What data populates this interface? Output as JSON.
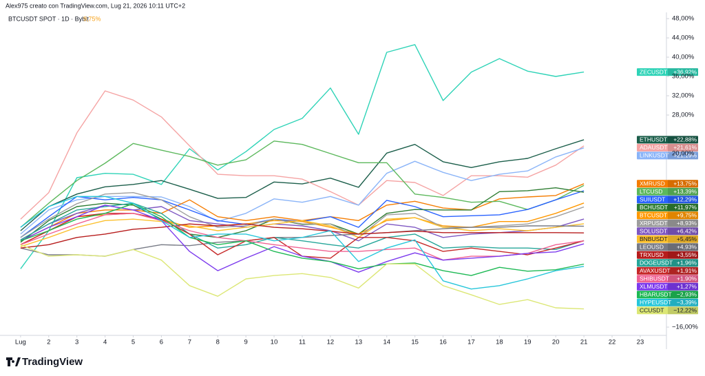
{
  "header": {
    "credit": "Alex975 creato con TradingView.com, Lug 21, 2026 10:11 UTC+2",
    "symbol": "BTCUSDT SPOT · 1D · Bybit",
    "symbol_change": "9,75%",
    "brand": "TradingView"
  },
  "chart_data": {
    "type": "line",
    "x": [
      1,
      2,
      3,
      4,
      5,
      6,
      7,
      8,
      9,
      10,
      11,
      12,
      13,
      14,
      15,
      16,
      17,
      18,
      19,
      20,
      21
    ],
    "xlim": [
      0.27,
      23.93
    ],
    "xticks": [
      {
        "value": 1,
        "label": "Lug"
      },
      2,
      3,
      4,
      5,
      6,
      7,
      8,
      9,
      10,
      11,
      12,
      13,
      14,
      15,
      16,
      17,
      18,
      19,
      20,
      21,
      22,
      23
    ],
    "ylim": [
      -17.71,
      49.29
    ],
    "yticks": [
      {
        "value": 48,
        "label": "48,00%"
      },
      {
        "value": 44,
        "label": "44,00%"
      },
      {
        "value": 40,
        "label": "40,00%"
      },
      {
        "value": 36,
        "label": "36,00%"
      },
      {
        "value": 32,
        "label": "32,00%"
      },
      {
        "value": 28,
        "label": "28,00%"
      },
      {
        "value": 20,
        "label": "20,00%"
      },
      {
        "value": -16,
        "label": "−16,00%"
      }
    ],
    "grid": false,
    "series": [
      {
        "name": "ZECUSDT",
        "color": "#2ed3b7",
        "values": [
          -3.9,
          4,
          15,
          15.9,
          15.7,
          13.6,
          21,
          16.6,
          20.4,
          25,
          27.3,
          33.6,
          24,
          41,
          42.6,
          31,
          36.9,
          39.7,
          37.1,
          36,
          36.92
        ],
        "value_labels": [
          null,
          null,
          null,
          null,
          null,
          null,
          null,
          null,
          null,
          null,
          null,
          null,
          null,
          null,
          null,
          null,
          null,
          null,
          null,
          null,
          "+36,92%"
        ]
      },
      {
        "name": "ETHUSDT",
        "color": "#1b5e4a",
        "values": [
          4,
          9,
          11.6,
          13.1,
          13.6,
          14.4,
          12.6,
          10.7,
          10.9,
          14.1,
          13.7,
          14.9,
          13,
          20.1,
          21.9,
          18.3,
          17.1,
          18.3,
          19,
          21,
          22.88
        ],
        "value_labels": [
          null,
          null,
          null,
          null,
          null,
          null,
          null,
          null,
          null,
          null,
          null,
          null,
          null,
          null,
          null,
          null,
          null,
          null,
          null,
          null,
          "+22,88%"
        ]
      },
      {
        "name": "ADAUSDT",
        "color": "#f5a3a3",
        "values": [
          6.4,
          11.9,
          24.3,
          33,
          31.1,
          27.6,
          21.6,
          15.7,
          15.4,
          15.4,
          14.7,
          12.1,
          9.3,
          14.4,
          14,
          11.3,
          15.4,
          15.4,
          15.1,
          17.6,
          21.61
        ],
        "value_labels": [
          null,
          null,
          null,
          null,
          null,
          null,
          null,
          null,
          null,
          null,
          null,
          null,
          null,
          null,
          null,
          null,
          null,
          null,
          null,
          null,
          "+21,61%"
        ]
      },
      {
        "name": "LINKUSDT",
        "color": "#8ab4f8",
        "values": [
          3.3,
          8.3,
          10.4,
          11.1,
          11.1,
          11,
          9,
          5.9,
          7.6,
          10.6,
          9.9,
          11.1,
          9.3,
          15.9,
          18.4,
          16.1,
          14.4,
          15.7,
          16.4,
          19.3,
          21.19
        ],
        "value_labels": [
          null,
          null,
          null,
          null,
          null,
          null,
          null,
          null,
          null,
          null,
          null,
          null,
          null,
          null,
          null,
          null,
          null,
          null,
          null,
          null,
          "+21,19%"
        ]
      },
      {
        "name": "XMRUSD",
        "color": "#f57c00",
        "values": [
          1.9,
          4.7,
          7.6,
          8.3,
          8.3,
          7.6,
          10.4,
          6.9,
          6.1,
          6.9,
          6.1,
          6.9,
          6.1,
          9.3,
          10.1,
          8.7,
          8.3,
          10.6,
          11,
          11.3,
          13.75
        ],
        "value_labels": [
          null,
          null,
          null,
          null,
          null,
          null,
          null,
          null,
          null,
          null,
          null,
          null,
          null,
          null,
          null,
          null,
          null,
          null,
          null,
          null,
          "+13,75%"
        ]
      },
      {
        "name": "LTCUSD",
        "color": "#5cb85c",
        "values": [
          4.7,
          9.7,
          14.4,
          18,
          22.1,
          20.7,
          19.4,
          17.6,
          18.7,
          22.6,
          21.9,
          20,
          18.1,
          18.1,
          11.6,
          10.9,
          9.9,
          10.1,
          8.4,
          10.4,
          13.39
        ],
        "value_labels": [
          null,
          null,
          null,
          null,
          null,
          null,
          null,
          null,
          null,
          null,
          null,
          null,
          null,
          null,
          null,
          null,
          null,
          null,
          null,
          null,
          "+13,39%"
        ]
      },
      {
        "name": "SUIUSDT",
        "color": "#2962ff",
        "values": [
          2.6,
          6.9,
          11.1,
          10.4,
          10.9,
          10.4,
          8.3,
          6.1,
          5.3,
          6.4,
          5.9,
          6.9,
          4.7,
          10.3,
          9,
          6.9,
          7.1,
          7.3,
          8.4,
          10.4,
          12.29
        ],
        "value_labels": [
          null,
          null,
          null,
          null,
          null,
          null,
          null,
          null,
          null,
          null,
          null,
          null,
          null,
          null,
          null,
          null,
          null,
          null,
          null,
          null,
          "+12,29%"
        ]
      },
      {
        "name": "BCHUSDT",
        "color": "#2e7d32",
        "values": [
          1.6,
          6.1,
          9,
          9.7,
          9.3,
          6.4,
          3.3,
          2.6,
          4,
          6.4,
          5.3,
          5.4,
          3.3,
          7.6,
          8.4,
          8.3,
          8.3,
          12.1,
          12.3,
          12.9,
          11.97
        ],
        "value_labels": [
          null,
          null,
          null,
          null,
          null,
          null,
          null,
          null,
          null,
          null,
          null,
          null,
          null,
          null,
          null,
          null,
          null,
          null,
          null,
          null,
          "+11,97%"
        ]
      },
      {
        "name": "BTCUSDT",
        "color": "#ff9800",
        "values": [
          1.1,
          4,
          6.9,
          7.3,
          7.6,
          6.4,
          4.7,
          5,
          5.4,
          6.1,
          5.9,
          4.7,
          3.3,
          6.1,
          6.7,
          5,
          4.7,
          5.9,
          5.9,
          7.6,
          9.75
        ],
        "value_labels": [
          null,
          null,
          null,
          null,
          null,
          null,
          null,
          null,
          null,
          null,
          null,
          null,
          null,
          null,
          null,
          null,
          null,
          null,
          null,
          null,
          "+9,75%"
        ]
      },
      {
        "name": "XRPUSDT",
        "color": "#9e9e9e",
        "values": [
          2.6,
          6.4,
          9.6,
          11.6,
          11.9,
          10.4,
          6.9,
          4.7,
          5,
          6.4,
          5.4,
          5.4,
          2.6,
          7.3,
          7.6,
          4.7,
          4.7,
          5,
          5.4,
          6.9,
          8.93
        ],
        "value_labels": [
          null,
          null,
          null,
          null,
          null,
          null,
          null,
          null,
          null,
          null,
          null,
          null,
          null,
          null,
          null,
          null,
          null,
          null,
          null,
          null,
          "+8,93%"
        ]
      },
      {
        "name": "SOLUSDT",
        "color": "#7e57c2",
        "values": [
          2.1,
          5.4,
          7.6,
          9.3,
          8.3,
          9,
          6.1,
          5.4,
          4.7,
          5.4,
          5,
          4,
          1.9,
          5.4,
          4.7,
          2.6,
          3.3,
          3.6,
          4,
          4.7,
          6.42
        ],
        "value_labels": [
          null,
          null,
          null,
          null,
          null,
          null,
          null,
          null,
          null,
          null,
          null,
          null,
          null,
          null,
          null,
          null,
          null,
          null,
          null,
          null,
          "+6,42%"
        ]
      },
      {
        "name": "BNBUSDT",
        "color": "#fbc02d",
        "values": [
          0.7,
          2.6,
          4.7,
          6.1,
          6.4,
          5.9,
          5,
          4,
          4.7,
          5.4,
          6.1,
          5,
          2.6,
          6.4,
          6.7,
          4.7,
          4,
          4.4,
          4,
          4.7,
          5.45
        ],
        "value_labels": [
          null,
          null,
          null,
          null,
          null,
          null,
          null,
          null,
          null,
          null,
          null,
          null,
          null,
          null,
          null,
          null,
          null,
          null,
          null,
          null,
          "+5,45%"
        ]
      },
      {
        "name": "LEOUSD",
        "color": "#787b86",
        "values": [
          0.4,
          -1,
          -1,
          -1.3,
          0.1,
          1.1,
          0.9,
          1.6,
          1.9,
          2.6,
          2.6,
          3,
          3.3,
          3.6,
          4,
          4.4,
          4.7,
          4.7,
          5,
          5,
          4.93
        ],
        "value_labels": [
          null,
          null,
          null,
          null,
          null,
          null,
          null,
          null,
          null,
          null,
          null,
          null,
          null,
          null,
          null,
          null,
          null,
          null,
          null,
          null,
          "+4,93%"
        ]
      },
      {
        "name": "TRXUSD",
        "color": "#b71c1c",
        "values": [
          0.4,
          1.1,
          2.6,
          3.3,
          4.3,
          4.7,
          5.4,
          5,
          5.4,
          4.7,
          4.4,
          3.9,
          3.3,
          3.6,
          3.9,
          3.6,
          3.6,
          3.6,
          3.6,
          3.6,
          3.55
        ],
        "value_labels": [
          null,
          null,
          null,
          null,
          null,
          null,
          null,
          null,
          null,
          null,
          null,
          null,
          null,
          null,
          null,
          null,
          null,
          null,
          null,
          null,
          "+3,55%"
        ]
      },
      {
        "name": "DOGEUSDT",
        "color": "#26a69a",
        "values": [
          2.1,
          5.4,
          8.3,
          9,
          9.7,
          7.6,
          3.3,
          0.4,
          1.1,
          2.6,
          1.9,
          1.1,
          0.4,
          2.6,
          3.3,
          0.4,
          0.7,
          0.4,
          0.4,
          0.1,
          1.96
        ],
        "value_labels": [
          null,
          null,
          null,
          null,
          null,
          null,
          null,
          null,
          null,
          null,
          null,
          null,
          null,
          null,
          null,
          null,
          null,
          null,
          null,
          null,
          "+1,96%"
        ]
      },
      {
        "name": "AVAXUSDT",
        "color": "#c62828",
        "values": [
          1.1,
          4,
          6.9,
          7.6,
          7.6,
          6.4,
          3.3,
          -1,
          1.9,
          2.6,
          -1.3,
          -1.7,
          2.6,
          2.6,
          1.9,
          -0.3,
          0.4,
          -0.3,
          -1,
          0.4,
          1.91
        ],
        "value_labels": [
          null,
          null,
          null,
          null,
          null,
          null,
          null,
          null,
          null,
          null,
          null,
          null,
          null,
          null,
          null,
          null,
          null,
          null,
          null,
          null,
          "+1,91%"
        ]
      },
      {
        "name": "SHIBUSDT",
        "color": "#f06292",
        "values": [
          1.1,
          3.3,
          5.4,
          7.3,
          7.6,
          6.1,
          4,
          2.6,
          1.9,
          1.1,
          0.4,
          -0.3,
          -0.3,
          0.1,
          0.4,
          -2.1,
          -1.3,
          -1.3,
          -0.7,
          1.1,
          1.9
        ],
        "value_labels": [
          null,
          null,
          null,
          null,
          null,
          null,
          null,
          null,
          null,
          null,
          null,
          null,
          null,
          null,
          null,
          null,
          null,
          null,
          null,
          null,
          "+1,90%"
        ]
      },
      {
        "name": "XLMUSDT",
        "color": "#7c3aed",
        "values": [
          1.9,
          4.7,
          6.9,
          9.3,
          8.3,
          6.1,
          -0.3,
          -4.3,
          -1.7,
          0.7,
          -1.3,
          -2.4,
          -4.6,
          -2.4,
          -0.6,
          -2.1,
          -1.7,
          -1.3,
          -0.7,
          -0.4,
          1.27
        ],
        "value_labels": [
          null,
          null,
          null,
          null,
          null,
          null,
          null,
          null,
          null,
          null,
          null,
          null,
          null,
          null,
          null,
          null,
          null,
          null,
          null,
          null,
          "+1,27%"
        ]
      },
      {
        "name": "HBARUSDT",
        "color": "#1db954",
        "values": [
          1.9,
          4,
          6.4,
          7.6,
          9.6,
          6.9,
          2.6,
          1.1,
          1.9,
          -0.3,
          -1.7,
          -2.4,
          -3.9,
          -2.9,
          -2.7,
          -4.3,
          -5.3,
          -3.6,
          -4.4,
          -4.1,
          -2.93
        ],
        "value_labels": [
          null,
          null,
          null,
          null,
          null,
          null,
          null,
          null,
          null,
          null,
          null,
          null,
          null,
          null,
          null,
          null,
          null,
          null,
          null,
          null,
          "−2,93%"
        ]
      },
      {
        "name": "HYPEUSDT",
        "color": "#26c6da",
        "values": [
          4.7,
          9,
          11.1,
          11.1,
          9.7,
          6.1,
          2.6,
          3.3,
          3.3,
          1.9,
          2.6,
          4,
          -2.4,
          0.4,
          2.1,
          -6.4,
          -8.1,
          -7.4,
          -6,
          -4.3,
          -3.39
        ],
        "value_labels": [
          null,
          null,
          null,
          null,
          null,
          null,
          null,
          null,
          null,
          null,
          null,
          null,
          null,
          null,
          null,
          null,
          null,
          null,
          null,
          null,
          "−3,39%"
        ]
      },
      {
        "name": "CCUSDT",
        "color": "#dce775",
        "values": [
          1.1,
          -1.3,
          -1,
          -1.3,
          0.1,
          -2.1,
          -7.4,
          -9.6,
          -6,
          -5.3,
          -4.9,
          -5.7,
          -7.9,
          -2.9,
          -2.9,
          -7.4,
          -9.3,
          -11.3,
          -10.3,
          -12,
          -12.22
        ],
        "value_labels": [
          null,
          null,
          null,
          null,
          null,
          null,
          null,
          null,
          null,
          null,
          null,
          null,
          null,
          null,
          null,
          null,
          null,
          null,
          null,
          null,
          "−12,22%"
        ]
      }
    ]
  }
}
